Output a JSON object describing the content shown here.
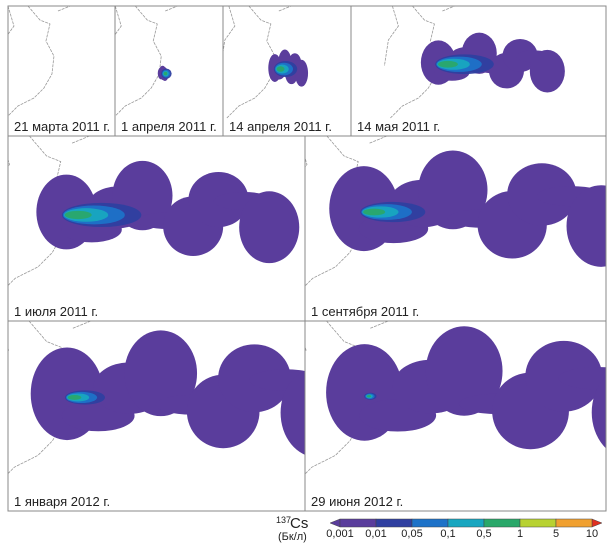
{
  "panels": [
    {
      "label": "21 марта 2011 г."
    },
    {
      "label": "1 апреля 2011 г."
    },
    {
      "label": "14 апреля 2011 г."
    },
    {
      "label": "14 мая 2011 г."
    },
    {
      "label": "1 июля 2011 г."
    },
    {
      "label": "1 сентября 2011 г."
    },
    {
      "label": "1 января 2012 г."
    },
    {
      "label": "29 июня 2012 г."
    }
  ],
  "legend": {
    "isotope_mass": "137",
    "isotope": "Cs",
    "unit": "(Бк/л)",
    "labels": [
      "0,001",
      "0,01",
      "0,05",
      "0,1",
      "0,5",
      "1",
      "5",
      "10"
    ]
  }
}
